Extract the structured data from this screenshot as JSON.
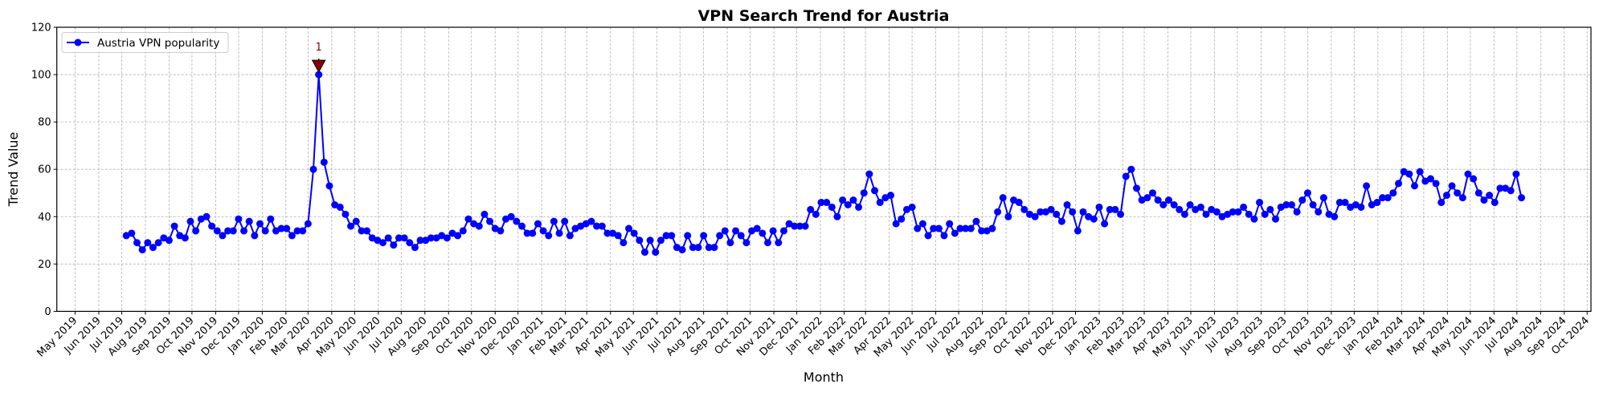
{
  "chart_data": {
    "type": "line",
    "title": "VPN Search Trend for Austria",
    "xlabel": "Month",
    "ylabel": "Trend Value",
    "ylim": [
      0,
      120
    ],
    "xlim": [
      "2019-04-07",
      "2024-10-06"
    ],
    "yticks": [
      0,
      20,
      40,
      60,
      80,
      100,
      120
    ],
    "xticks": [
      "May 2019",
      "Jun 2019",
      "Jul 2019",
      "Aug 2019",
      "Sep 2019",
      "Oct 2019",
      "Nov 2019",
      "Dec 2019",
      "Jan 2020",
      "Feb 2020",
      "Mar 2020",
      "Apr 2020",
      "May 2020",
      "Jun 2020",
      "Jul 2020",
      "Aug 2020",
      "Sep 2020",
      "Oct 2020",
      "Nov 2020",
      "Dec 2020",
      "Jan 2021",
      "Feb 2021",
      "Mar 2021",
      "Apr 2021",
      "May 2021",
      "Jun 2021",
      "Jul 2021",
      "Aug 2021",
      "Sep 2021",
      "Oct 2021",
      "Nov 2021",
      "Dec 2021",
      "Jan 2022",
      "Feb 2022",
      "Mar 2022",
      "Apr 2022",
      "May 2022",
      "Jun 2022",
      "Jul 2022",
      "Aug 2022",
      "Sep 2022",
      "Oct 2022",
      "Nov 2022",
      "Dec 2022",
      "Jan 2023",
      "Feb 2023",
      "Mar 2023",
      "Apr 2023",
      "May 2023",
      "Jun 2023",
      "Jul 2023",
      "Aug 2023",
      "Sep 2023",
      "Oct 2023",
      "Nov 2023",
      "Dec 2023",
      "Jan 2024",
      "Feb 2024",
      "Mar 2024",
      "Apr 2024",
      "May 2024",
      "Jun 2024",
      "Jul 2024",
      "Aug 2024",
      "Sep 2024",
      "Oct 2024"
    ],
    "grid": true,
    "legend_position": "top-left",
    "series": [
      {
        "name": "Austria VPN popularity",
        "color": "#0000ff",
        "marker": "circle",
        "x": [
          "2019-07-07",
          "2019-07-14",
          "2019-07-21",
          "2019-07-28",
          "2019-08-04",
          "2019-08-11",
          "2019-08-18",
          "2019-08-25",
          "2019-09-01",
          "2019-09-08",
          "2019-09-15",
          "2019-09-22",
          "2019-09-29",
          "2019-10-06",
          "2019-10-13",
          "2019-10-20",
          "2019-10-27",
          "2019-11-03",
          "2019-11-10",
          "2019-11-17",
          "2019-11-24",
          "2019-12-01",
          "2019-12-08",
          "2019-12-15",
          "2019-12-22",
          "2019-12-29",
          "2020-01-05",
          "2020-01-12",
          "2020-01-19",
          "2020-01-26",
          "2020-02-02",
          "2020-02-09",
          "2020-02-16",
          "2020-02-23",
          "2020-03-01",
          "2020-03-08",
          "2020-03-15",
          "2020-03-22",
          "2020-03-29",
          "2020-04-05",
          "2020-04-12",
          "2020-04-19",
          "2020-04-26",
          "2020-05-03",
          "2020-05-10",
          "2020-05-17",
          "2020-05-24",
          "2020-05-31",
          "2020-06-07",
          "2020-06-14",
          "2020-06-21",
          "2020-06-28",
          "2020-07-05",
          "2020-07-12",
          "2020-07-19",
          "2020-07-26",
          "2020-08-02",
          "2020-08-09",
          "2020-08-16",
          "2020-08-23",
          "2020-08-30",
          "2020-09-06",
          "2020-09-13",
          "2020-09-20",
          "2020-09-27",
          "2020-10-04",
          "2020-10-11",
          "2020-10-18",
          "2020-10-25",
          "2020-11-01",
          "2020-11-08",
          "2020-11-15",
          "2020-11-22",
          "2020-11-29",
          "2020-12-06",
          "2020-12-13",
          "2020-12-20",
          "2020-12-27",
          "2021-01-03",
          "2021-01-10",
          "2021-01-17",
          "2021-01-24",
          "2021-01-31",
          "2021-02-07",
          "2021-02-14",
          "2021-02-21",
          "2021-02-28",
          "2021-03-07",
          "2021-03-14",
          "2021-03-21",
          "2021-03-28",
          "2021-04-04",
          "2021-04-11",
          "2021-04-18",
          "2021-04-25",
          "2021-05-02",
          "2021-05-09",
          "2021-05-16",
          "2021-05-23",
          "2021-05-30",
          "2021-06-06",
          "2021-06-13",
          "2021-06-20",
          "2021-06-27",
          "2021-07-04",
          "2021-07-11",
          "2021-07-18",
          "2021-07-25",
          "2021-08-01",
          "2021-08-08",
          "2021-08-15",
          "2021-08-22",
          "2021-08-29",
          "2021-09-05",
          "2021-09-12",
          "2021-09-19",
          "2021-09-26",
          "2021-10-03",
          "2021-10-10",
          "2021-10-17",
          "2021-10-24",
          "2021-10-31",
          "2021-11-07",
          "2021-11-14",
          "2021-11-21",
          "2021-11-28",
          "2021-12-05",
          "2021-12-12",
          "2021-12-19",
          "2021-12-26",
          "2022-01-02",
          "2022-01-09",
          "2022-01-16",
          "2022-01-23",
          "2022-01-30",
          "2022-02-06",
          "2022-02-13",
          "2022-02-20",
          "2022-02-27",
          "2022-03-06",
          "2022-03-13",
          "2022-03-20",
          "2022-03-27",
          "2022-04-03",
          "2022-04-10",
          "2022-04-17",
          "2022-04-24",
          "2022-05-01",
          "2022-05-08",
          "2022-05-15",
          "2022-05-22",
          "2022-05-29",
          "2022-06-05",
          "2022-06-12",
          "2022-06-19",
          "2022-06-26",
          "2022-07-03",
          "2022-07-10",
          "2022-07-17",
          "2022-07-24",
          "2022-07-31",
          "2022-08-07",
          "2022-08-14",
          "2022-08-21",
          "2022-08-28",
          "2022-09-04",
          "2022-09-11",
          "2022-09-18",
          "2022-09-25",
          "2022-10-02",
          "2022-10-09",
          "2022-10-16",
          "2022-10-23",
          "2022-10-30",
          "2022-11-06",
          "2022-11-13",
          "2022-11-20",
          "2022-11-27",
          "2022-12-04",
          "2022-12-11",
          "2022-12-18",
          "2022-12-25",
          "2023-01-01",
          "2023-01-08",
          "2023-01-15",
          "2023-01-22",
          "2023-01-29",
          "2023-02-05",
          "2023-02-12",
          "2023-02-19",
          "2023-02-26",
          "2023-03-05",
          "2023-03-12",
          "2023-03-19",
          "2023-03-26",
          "2023-04-02",
          "2023-04-09",
          "2023-04-16",
          "2023-04-23",
          "2023-04-30",
          "2023-05-07",
          "2023-05-14",
          "2023-05-21",
          "2023-05-28",
          "2023-06-04",
          "2023-06-11",
          "2023-06-18",
          "2023-06-25",
          "2023-07-02",
          "2023-07-09",
          "2023-07-16",
          "2023-07-23",
          "2023-07-30",
          "2023-08-06",
          "2023-08-13",
          "2023-08-20",
          "2023-08-27",
          "2023-09-03",
          "2023-09-10",
          "2023-09-17",
          "2023-09-24",
          "2023-10-01",
          "2023-10-08",
          "2023-10-15",
          "2023-10-22",
          "2023-10-29",
          "2023-11-05",
          "2023-11-12",
          "2023-11-19",
          "2023-11-26",
          "2023-12-03",
          "2023-12-10",
          "2023-12-17",
          "2023-12-24",
          "2023-12-31",
          "2024-01-07",
          "2024-01-14",
          "2024-01-21",
          "2024-01-28",
          "2024-02-04",
          "2024-02-11",
          "2024-02-18",
          "2024-02-25",
          "2024-03-03",
          "2024-03-10",
          "2024-03-17",
          "2024-03-24",
          "2024-03-31",
          "2024-04-07",
          "2024-04-14",
          "2024-04-21",
          "2024-04-28",
          "2024-05-05",
          "2024-05-12",
          "2024-05-19",
          "2024-05-26",
          "2024-06-02",
          "2024-06-09",
          "2024-06-16",
          "2024-06-23",
          "2024-06-30",
          "2024-07-07"
        ],
        "values": [
          32,
          33,
          29,
          26,
          29,
          27,
          29,
          31,
          30,
          36,
          32,
          31,
          38,
          34,
          39,
          40,
          36,
          34,
          32,
          34,
          34,
          39,
          34,
          38,
          32,
          37,
          34,
          39,
          34,
          35,
          35,
          32,
          34,
          34,
          37,
          60,
          100,
          63,
          53,
          45,
          44,
          41,
          36,
          38,
          34,
          34,
          31,
          30,
          29,
          31,
          28,
          31,
          31,
          29,
          27,
          30,
          30,
          31,
          31,
          32,
          31,
          33,
          32,
          34,
          39,
          37,
          36,
          41,
          38,
          35,
          34,
          39,
          40,
          38,
          36,
          33,
          33,
          37,
          34,
          32,
          38,
          33,
          38,
          32,
          35,
          36,
          37,
          38,
          36,
          36,
          33,
          33,
          32,
          29,
          35,
          33,
          30,
          25,
          30,
          25,
          30,
          32,
          32,
          27,
          26,
          32,
          27,
          27,
          32,
          27,
          27,
          32,
          34,
          29,
          34,
          32,
          29,
          34,
          35,
          33,
          29,
          34,
          29,
          34,
          37,
          36,
          36,
          36,
          43,
          41,
          46,
          46,
          44,
          40,
          47,
          45,
          47,
          44,
          50,
          58,
          51,
          46,
          48,
          49,
          37,
          39,
          43,
          44,
          35,
          37,
          32,
          35,
          35,
          32,
          37,
          33,
          35,
          35,
          35,
          38,
          34,
          34,
          35,
          42,
          48,
          40,
          47,
          46,
          43,
          41,
          40,
          42,
          42,
          43,
          41,
          38,
          45,
          42,
          34,
          42,
          40,
          39,
          44,
          37,
          43,
          43,
          41,
          57,
          60,
          52,
          47,
          48,
          50,
          47,
          45,
          47,
          45,
          43,
          41,
          45,
          43,
          44,
          41,
          43,
          42,
          40,
          41,
          42,
          42,
          44,
          41,
          39,
          46,
          41,
          43,
          39,
          44,
          45,
          45,
          42,
          47,
          50,
          45,
          42,
          48,
          41,
          40,
          46,
          46,
          44,
          45,
          44,
          53,
          45,
          46,
          48,
          48,
          50,
          54,
          59,
          58,
          53,
          59,
          55,
          56,
          54,
          46,
          49,
          53,
          50,
          48,
          58,
          56,
          50,
          47,
          49,
          46,
          52,
          52,
          51,
          58,
          48
        ]
      }
    ],
    "annotations": [
      {
        "text": "1",
        "x": "2020-03-15",
        "y": 100,
        "marker": "down-triangle",
        "color": "#8b0000"
      }
    ]
  }
}
